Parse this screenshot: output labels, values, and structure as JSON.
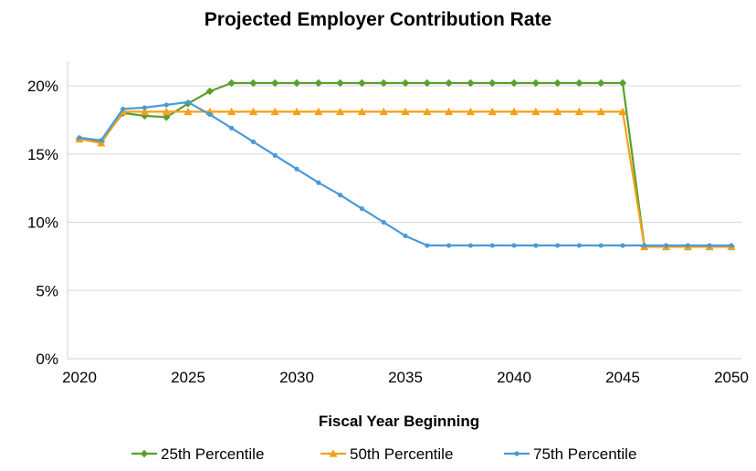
{
  "chart_data": {
    "type": "line",
    "title": "Projected Employer Contribution Rate",
    "xlabel": "Fiscal Year Beginning",
    "ylabel": "",
    "xlim": [
      2020,
      2050
    ],
    "ylim": [
      0,
      20
    ],
    "x_ticks": [
      "2020",
      "2025",
      "2030",
      "2035",
      "2040",
      "2045",
      "2050"
    ],
    "y_ticks": [
      "0%",
      "5%",
      "10%",
      "15%",
      "20%"
    ],
    "grid": "horizontal",
    "legend_position": "bottom",
    "x": [
      2020,
      2021,
      2022,
      2023,
      2024,
      2025,
      2026,
      2027,
      2028,
      2029,
      2030,
      2031,
      2032,
      2033,
      2034,
      2035,
      2036,
      2037,
      2038,
      2039,
      2040,
      2041,
      2042,
      2043,
      2044,
      2045,
      2046,
      2047,
      2048,
      2049,
      2050
    ],
    "series": [
      {
        "name": "25th Percentile",
        "color": "#5aa02c",
        "marker": "diamond",
        "values": [
          16.1,
          15.9,
          18.0,
          17.8,
          17.7,
          18.7,
          19.6,
          20.2,
          20.2,
          20.2,
          20.2,
          20.2,
          20.2,
          20.2,
          20.2,
          20.2,
          20.2,
          20.2,
          20.2,
          20.2,
          20.2,
          20.2,
          20.2,
          20.2,
          20.2,
          20.2,
          8.2,
          8.2,
          8.2,
          8.2,
          8.2
        ]
      },
      {
        "name": "50th Percentile",
        "color": "#f5a01a",
        "marker": "triangle",
        "values": [
          16.1,
          15.8,
          18.1,
          18.1,
          18.1,
          18.1,
          18.1,
          18.1,
          18.1,
          18.1,
          18.1,
          18.1,
          18.1,
          18.1,
          18.1,
          18.1,
          18.1,
          18.1,
          18.1,
          18.1,
          18.1,
          18.1,
          18.1,
          18.1,
          18.1,
          18.1,
          8.2,
          8.2,
          8.2,
          8.2,
          8.2
        ]
      },
      {
        "name": "75th Percentile",
        "color": "#4a9ad8",
        "marker": "dot",
        "values": [
          16.2,
          16.0,
          18.3,
          18.4,
          18.6,
          18.8,
          17.9,
          16.9,
          15.9,
          14.9,
          13.9,
          12.9,
          12.0,
          11.0,
          10.0,
          9.0,
          8.3,
          8.3,
          8.3,
          8.3,
          8.3,
          8.3,
          8.3,
          8.3,
          8.3,
          8.3,
          8.3,
          8.3,
          8.3,
          8.3,
          8.3
        ]
      }
    ]
  }
}
